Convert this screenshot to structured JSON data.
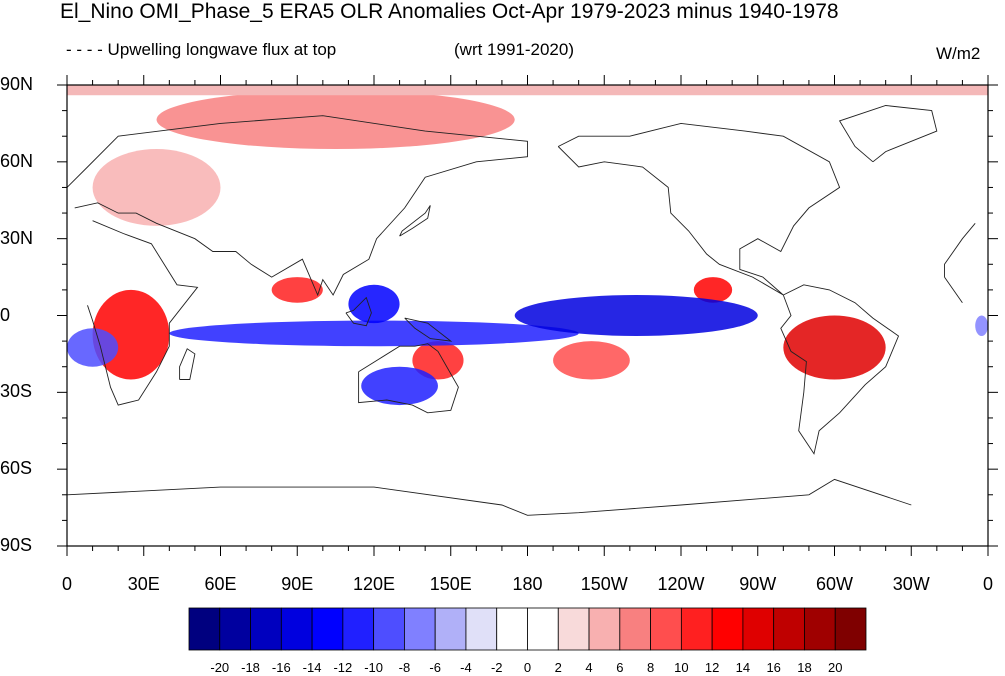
{
  "header": {
    "title": "El_Nino OMI_Phase_5 ERA5 OLR Anomalies Oct-Apr 1979-2023 minus 1940-1978",
    "left_subtitle": "- - - - Upwelling longwave flux at top",
    "center_subtitle": "(wrt 1991-2020)",
    "units": "W/m2"
  },
  "map": {
    "projection": "cylindrical-equidistant",
    "lat_labels": [
      "90N",
      "60N",
      "30N",
      "0",
      "30S",
      "60S",
      "90S"
    ],
    "lon_labels": [
      "0",
      "30E",
      "60E",
      "90E",
      "120E",
      "150E",
      "180",
      "150W",
      "120W",
      "90W",
      "60W",
      "30W",
      "0"
    ],
    "anomaly_regions": [
      {
        "lon": [
          35,
          175
        ],
        "lat": [
          65,
          88
        ],
        "value": 6
      },
      {
        "lon": [
          10,
          60
        ],
        "lat": [
          35,
          65
        ],
        "value": 4
      },
      {
        "lon": [
          10,
          40
        ],
        "lat": [
          -25,
          10
        ],
        "value": 12
      },
      {
        "lon": [
          80,
          100
        ],
        "lat": [
          5,
          15
        ],
        "value": 10
      },
      {
        "lon": [
          135,
          155
        ],
        "lat": [
          -25,
          -10
        ],
        "value": 10
      },
      {
        "lon": [
          190,
          220
        ],
        "lat": [
          -25,
          -10
        ],
        "value": 8
      },
      {
        "lon": [
          245,
          260
        ],
        "lat": [
          5,
          15
        ],
        "value": 12
      },
      {
        "lon": [
          280,
          320
        ],
        "lat": [
          -25,
          0
        ],
        "value": 14
      },
      {
        "lon": [
          40,
          200
        ],
        "lat": [
          -12,
          -2
        ],
        "value": -12
      },
      {
        "lon": [
          110,
          130
        ],
        "lat": [
          -3,
          12
        ],
        "value": -14
      },
      {
        "lon": [
          115,
          145
        ],
        "lat": [
          -35,
          -20
        ],
        "value": -12
      },
      {
        "lon": [
          175,
          270
        ],
        "lat": [
          -8,
          8
        ],
        "value": -16
      },
      {
        "lon": [
          0,
          20
        ],
        "lat": [
          -20,
          -5
        ],
        "value": -10
      },
      {
        "lon": [
          355,
          360
        ],
        "lat": [
          -8,
          0
        ],
        "value": -8
      }
    ]
  },
  "colorbar": {
    "labels": [
      "-20",
      "-18",
      "-16",
      "-14",
      "-12",
      "-10",
      "-8",
      "-6",
      "-4",
      "-2",
      "0",
      "2",
      "4",
      "6",
      "8",
      "10",
      "12",
      "14",
      "16",
      "18",
      "20"
    ],
    "colors": [
      "#00007f",
      "#00009f",
      "#0000bf",
      "#0000df",
      "#0000ff",
      "#2020ff",
      "#4e4eff",
      "#8080ff",
      "#b0b0f8",
      "#e0e0f8",
      "#ffffff",
      "#ffffff",
      "#f8dada",
      "#f8b0b0",
      "#f88080",
      "#ff4e4e",
      "#ff2020",
      "#ff0000",
      "#df0000",
      "#bf0000",
      "#9f0000",
      "#7f0000"
    ]
  }
}
